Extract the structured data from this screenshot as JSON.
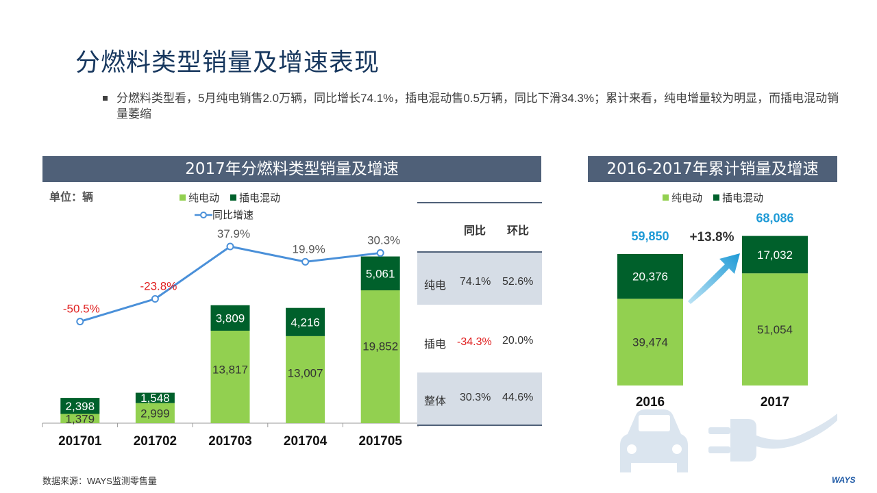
{
  "title": "分燃料类型销量及增速表现",
  "summary": "分燃料类型看，5月纯电销售2.0万辆，同比增长74.1%，插电混动售0.5万辆，同比下滑34.3%；累计来看，纯电增量较为明显，而插电混动销量萎缩",
  "left_panel": {
    "title": "2017年分燃料类型销量及增速",
    "unit": "单位：辆"
  },
  "right_panel": {
    "title": "2016-2017年累计销量及增速"
  },
  "legend": {
    "bev": "纯电动",
    "phev": "插电混动",
    "growth": "同比增速"
  },
  "colors": {
    "bev": "#92d050",
    "phev": "#00602b",
    "growth": "#4a90d9",
    "header": "#4f6078",
    "negative": "#e02020",
    "cumulative": "#1e9ad6"
  },
  "chart_data": [
    {
      "type": "bar",
      "stacked": true,
      "categories": [
        "201701",
        "201702",
        "201703",
        "201704",
        "201705"
      ],
      "series": [
        {
          "name": "纯电动",
          "values": [
            1379,
            2999,
            13817,
            13007,
            19852
          ]
        },
        {
          "name": "插电混动",
          "values": [
            2398,
            1548,
            3809,
            4216,
            5061
          ]
        }
      ],
      "line_series": {
        "name": "同比增速",
        "values": [
          -50.5,
          -23.8,
          37.9,
          19.9,
          30.3
        ],
        "labels": [
          "-50.5%",
          "-23.8%",
          "37.9%",
          "19.9%",
          "30.3%"
        ]
      },
      "value_labels": {
        "bev": [
          "1,379",
          "2,999",
          "13,817",
          "13,007",
          "19,852"
        ],
        "phev": [
          "2,398",
          "1,548",
          "3,809",
          "4,216",
          "5,061"
        ]
      },
      "ylim": [
        0,
        26000
      ]
    },
    {
      "type": "bar",
      "stacked": true,
      "categories": [
        "2016",
        "2017"
      ],
      "series": [
        {
          "name": "纯电动",
          "values": [
            39474,
            51054
          ]
        },
        {
          "name": "插电混动",
          "values": [
            20376,
            17032
          ]
        }
      ],
      "value_labels": {
        "bev": [
          "39,474",
          "51,054"
        ],
        "phev": [
          "20,376",
          "17,032"
        ]
      },
      "totals": [
        "59,850",
        "68,086"
      ],
      "growth_label": "+13.8%",
      "ylim": [
        0,
        70000
      ]
    }
  ],
  "table": {
    "headers": [
      "同比",
      "环比"
    ],
    "rows": [
      {
        "label": "纯电",
        "yoy": "74.1%",
        "mom": "52.6%"
      },
      {
        "label": "插电",
        "yoy": "-34.3%",
        "mom": "20.0%"
      },
      {
        "label": "整体",
        "yoy": "30.3%",
        "mom": "44.6%"
      }
    ]
  },
  "source": "数据来源：WAYS监测零售量",
  "logo": "WAYS",
  "icons": [
    "car-icon",
    "plug-icon",
    "growth-arrow-icon"
  ]
}
